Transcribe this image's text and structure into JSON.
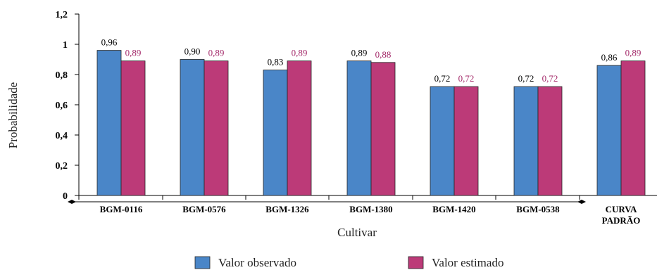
{
  "chart_data": {
    "type": "bar",
    "title": "",
    "xlabel": "Cultivar",
    "ylabel": "Probabilidade",
    "ylim": [
      0,
      1.2
    ],
    "yticks": [
      "0",
      "0,2",
      "0,4",
      "0,6",
      "0,8",
      "1",
      "1,2"
    ],
    "categories": [
      [
        "BGM-0116"
      ],
      [
        "BGM-0576"
      ],
      [
        "BGM-1326"
      ],
      [
        "BGM-1380"
      ],
      [
        "BGM-1420"
      ],
      [
        "BGM-0538"
      ],
      [
        "CURVA",
        "PADRÃO"
      ]
    ],
    "series": [
      {
        "name": "Valor observado",
        "color": "#4a86c8",
        "label_color": "#000000",
        "values": [
          0.96,
          0.9,
          0.83,
          0.89,
          0.72,
          0.72,
          0.86
        ],
        "labels": [
          "0,96",
          "0,90",
          "0,83",
          "0,89",
          "0,72",
          "0,72",
          "0,86"
        ]
      },
      {
        "name": "Valor estimado",
        "color": "#bc3a78",
        "label_color": "#a42a6a",
        "values": [
          0.89,
          0.89,
          0.89,
          0.88,
          0.72,
          0.72,
          0.89
        ],
        "labels": [
          "0,89",
          "0,89",
          "0,89",
          "0,88",
          "0,72",
          "0,72",
          "0,89"
        ]
      }
    ],
    "grid": false,
    "legend_position": "bottom-center"
  }
}
